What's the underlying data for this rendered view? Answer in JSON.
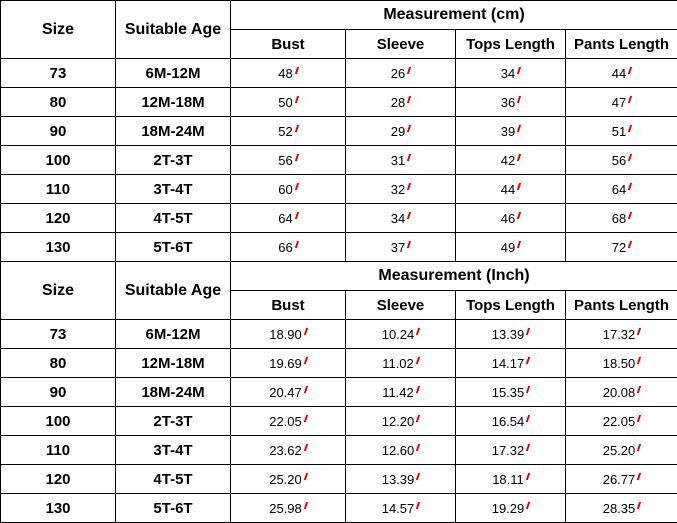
{
  "chart_data": {
    "type": "table",
    "sections": [
      {
        "header": {
          "size": "Size",
          "age": "Suitable Age",
          "measurement": "Measurement (cm)"
        },
        "columns": [
          "Bust",
          "Sleeve",
          "Tops Length",
          "Pants Length"
        ],
        "rows": [
          {
            "size": "73",
            "age": "6M-12M",
            "values": [
              "48",
              "26",
              "34",
              "44"
            ]
          },
          {
            "size": "80",
            "age": "12M-18M",
            "values": [
              "50",
              "28",
              "36",
              "47"
            ]
          },
          {
            "size": "90",
            "age": "18M-24M",
            "values": [
              "52",
              "29",
              "39",
              "51"
            ]
          },
          {
            "size": "100",
            "age": "2T-3T",
            "values": [
              "56",
              "31",
              "42",
              "56"
            ]
          },
          {
            "size": "110",
            "age": "3T-4T",
            "values": [
              "60",
              "32",
              "44",
              "64"
            ]
          },
          {
            "size": "120",
            "age": "4T-5T",
            "values": [
              "64",
              "34",
              "46",
              "68"
            ]
          },
          {
            "size": "130",
            "age": "5T-6T",
            "values": [
              "66",
              "37",
              "49",
              "72"
            ]
          }
        ]
      },
      {
        "header": {
          "size": "Size",
          "age": "Suitable Age",
          "measurement": "Measurement (Inch)"
        },
        "columns": [
          "Bust",
          "Sleeve",
          "Tops Length",
          "Pants Length"
        ],
        "rows": [
          {
            "size": "73",
            "age": "6M-12M",
            "values": [
              "18.90",
              "10.24",
              "13.39",
              "17.32"
            ]
          },
          {
            "size": "80",
            "age": "12M-18M",
            "values": [
              "19.69",
              "11.02",
              "14.17",
              "18.50"
            ]
          },
          {
            "size": "90",
            "age": "18M-24M",
            "values": [
              "20.47",
              "11.42",
              "15.35",
              "20.08"
            ]
          },
          {
            "size": "100",
            "age": "2T-3T",
            "values": [
              "22.05",
              "12.20",
              "16.54",
              "22.05"
            ]
          },
          {
            "size": "110",
            "age": "3T-4T",
            "values": [
              "23.62",
              "12.60",
              "17.32",
              "25.20"
            ]
          },
          {
            "size": "120",
            "age": "4T-5T",
            "values": [
              "25.20",
              "13.39",
              "18.11",
              "26.77"
            ]
          },
          {
            "size": "130",
            "age": "5T-6T",
            "values": [
              "25.98",
              "14.57",
              "19.29",
              "28.35"
            ]
          }
        ]
      }
    ]
  },
  "colors": {
    "border": "#000000",
    "marker": "#e00000",
    "background": "#ffffff",
    "text": "#000000"
  }
}
